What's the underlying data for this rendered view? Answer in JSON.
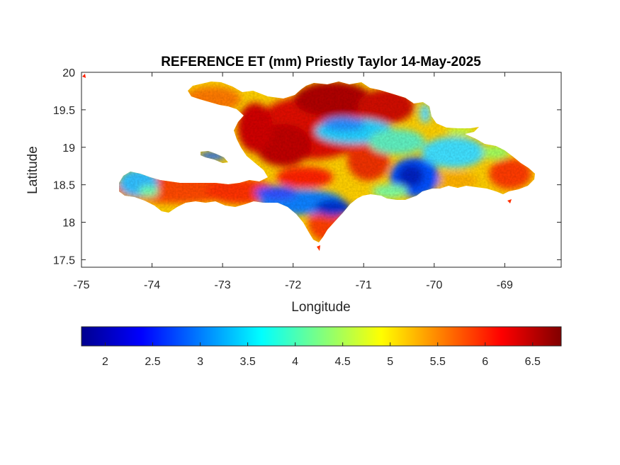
{
  "chart_data": {
    "type": "heatmap",
    "title": "REFERENCE ET (mm) Priestly Taylor 14-May-2025",
    "xlabel": "Longitude",
    "ylabel": "Latitude",
    "xlim": [
      -75,
      -68.2
    ],
    "ylim": [
      17.4,
      20
    ],
    "xticks": [
      -75,
      -74,
      -73,
      -72,
      -71,
      -70,
      -69
    ],
    "xtick_labels": [
      "-75",
      "-74",
      "-73",
      "-72",
      "-71",
      "-70",
      "-69"
    ],
    "yticks": [
      17.5,
      18,
      18.5,
      19,
      19.5,
      20
    ],
    "ytick_labels": [
      "17.5",
      "18",
      "18.5",
      "19",
      "19.5",
      "20"
    ],
    "colormap": "jet",
    "clim": [
      1.75,
      6.8
    ],
    "colorbar": {
      "location": "below",
      "ticks": [
        2,
        2.5,
        3,
        3.5,
        4,
        4.5,
        5,
        5.5,
        6,
        6.5
      ],
      "tick_labels": [
        "2",
        "2.5",
        "3",
        "3.5",
        "4",
        "4.5",
        "5",
        "5.5",
        "6",
        "6.5"
      ]
    },
    "grid": false
  }
}
